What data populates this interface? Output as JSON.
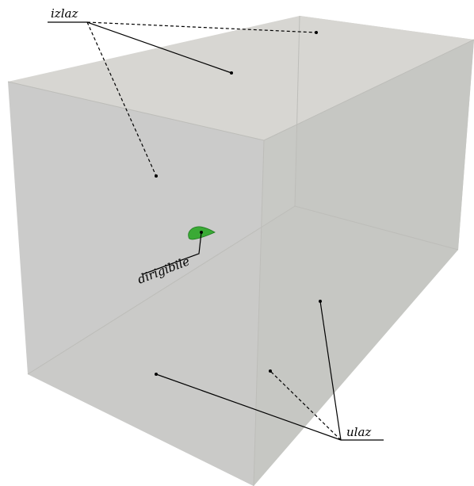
{
  "labels": {
    "outlet": "izlaz",
    "airship": "dirigibile",
    "inlet": "ulaz"
  },
  "colors": {
    "front_face": "#c9c9c8",
    "top_face": "#d7d6d2",
    "right_face": "#c5c6c2",
    "floor_face": "#d2d2ce",
    "back_wall": "#cfcfcb",
    "airship": "#3aaa35",
    "airship_edge": "#1f7a1f",
    "lines": "#000000",
    "edge": "#bdbdb9"
  }
}
